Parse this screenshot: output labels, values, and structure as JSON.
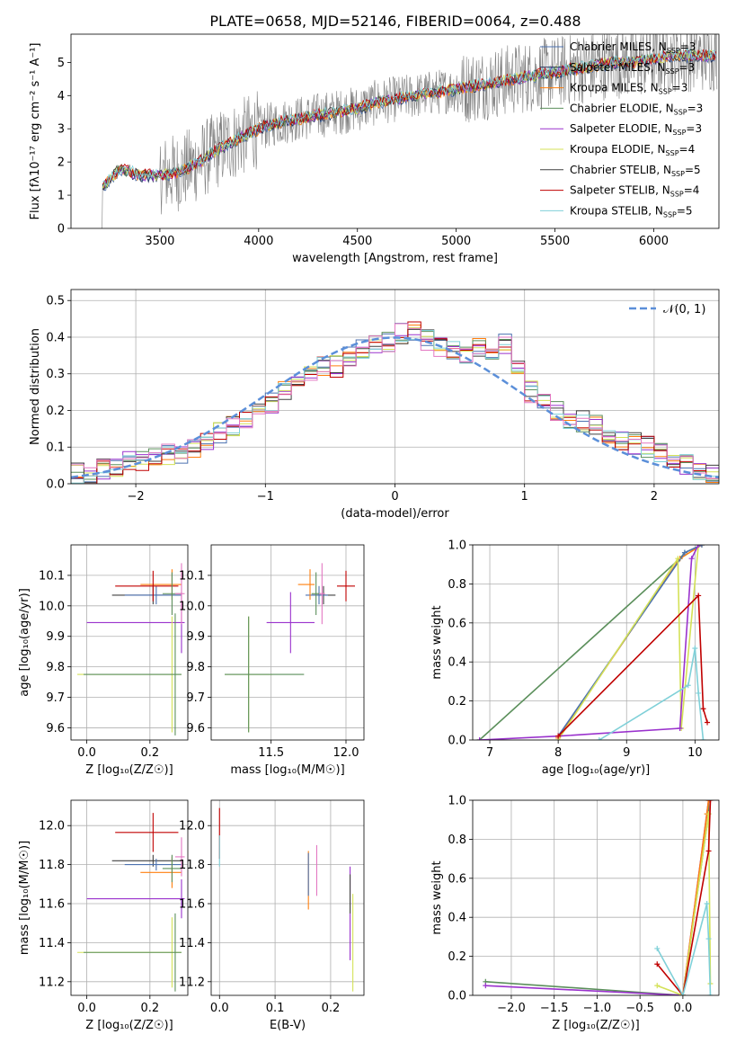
{
  "figure": {
    "title": "PLATE=0658, MJD=52146, FIBERID=0064, z=0.488"
  },
  "chart_data": [
    {
      "id": "spectrum",
      "type": "line",
      "xlabel": "wavelength [Angstrom, rest frame]",
      "ylabel": "Flux [fλ10⁻¹⁷ erg cm⁻² s⁻¹ A⁻¹]",
      "xlim": [
        3050,
        6330
      ],
      "ylim": [
        0,
        5.85
      ],
      "xticks": [
        3500,
        4000,
        4500,
        5000,
        5500,
        6000
      ],
      "yticks": [
        0,
        1,
        2,
        3,
        4,
        5
      ],
      "grid": false,
      "legend_position": "top-right",
      "data_series_color": "#808080",
      "model_series": [
        {
          "name": "Chabrier MILES, N_SSP=3",
          "color": "#4c72b0"
        },
        {
          "name": "Salpeter MILES, N_SSP=3",
          "color": "#1f2f5a"
        },
        {
          "name": "Kroupa MILES, N_SSP=3",
          "color": "#ff7f0e"
        },
        {
          "name": "Chabrier ELODIE, N_SSP=3",
          "color": "#5b8f5b"
        },
        {
          "name": "Salpeter ELODIE, N_SSP=3",
          "color": "#9a32cd"
        },
        {
          "name": "Kroupa ELODIE, N_SSP=4",
          "color": "#d4e157"
        },
        {
          "name": "Chabrier STELIB, N_SSP=5",
          "color": "#404040"
        },
        {
          "name": "Salpeter STELIB, N_SSP=4",
          "color": "#c00000"
        },
        {
          "name": "Kroupa STELIB, N_SSP=5",
          "color": "#7fd0d8"
        }
      ],
      "continuum_points": {
        "x": [
          3200,
          3250,
          3300,
          3400,
          3500,
          3600,
          3700,
          3800,
          3900,
          4000,
          4100,
          4200,
          4300,
          4400,
          4500,
          4600,
          4700,
          4800,
          4900,
          5000,
          5100,
          5200,
          5300,
          5400,
          5500,
          5600,
          5700,
          5800,
          5900,
          6000,
          6100,
          6200
        ],
        "y": [
          1.2,
          1.5,
          1.8,
          1.6,
          1.6,
          1.7,
          2.0,
          2.4,
          2.7,
          3.0,
          3.2,
          3.3,
          3.4,
          3.5,
          3.6,
          3.8,
          3.9,
          4.0,
          4.1,
          4.2,
          4.3,
          4.4,
          4.5,
          4.6,
          4.7,
          4.8,
          4.9,
          5.0,
          5.0,
          5.1,
          5.2,
          5.2
        ]
      }
    },
    {
      "id": "residuals",
      "type": "line",
      "xlabel": "(data-model)/error",
      "ylabel": "Normed distribution",
      "xlim": [
        -2.5,
        2.5
      ],
      "ylim": [
        0,
        0.53
      ],
      "xticks": [
        -2,
        -1,
        0,
        1,
        2
      ],
      "xtick_labels": [
        "−2",
        "−1",
        "0",
        "1",
        "2"
      ],
      "yticks": [
        0.0,
        0.1,
        0.2,
        0.3,
        0.4,
        0.5
      ],
      "ytick_labels": [
        "0.0",
        "0.1",
        "0.2",
        "0.3",
        "0.4",
        "0.5"
      ],
      "grid": true,
      "legend_position": "top-right",
      "normal_label": "𝒩(0, 1)",
      "normal_color": "#5b8fd9",
      "hist_colors": [
        "#4c72b0",
        "#ff7f0e",
        "#5b8f5b",
        "#9a32cd",
        "#d4e157",
        "#404040",
        "#c00000",
        "#7fd0d8",
        "#e377c2"
      ],
      "hist_bins": [
        -2.5,
        -2.4,
        -2.3,
        -2.2,
        -2.1,
        -2.0,
        -1.9,
        -1.8,
        -1.7,
        -1.6,
        -1.5,
        -1.4,
        -1.3,
        -1.2,
        -1.1,
        -1.0,
        -0.9,
        -0.8,
        -0.7,
        -0.6,
        -0.5,
        -0.4,
        -0.3,
        -0.2,
        -0.1,
        0.0,
        0.1,
        0.2,
        0.3,
        0.4,
        0.5,
        0.6,
        0.7,
        0.8,
        0.9,
        1.0,
        1.1,
        1.2,
        1.3,
        1.4,
        1.5,
        1.6,
        1.7,
        1.8,
        1.9,
        2.0,
        2.1,
        2.2,
        2.3,
        2.4,
        2.5
      ],
      "hist_base": [
        0.03,
        0.02,
        0.04,
        0.05,
        0.06,
        0.06,
        0.07,
        0.08,
        0.08,
        0.1,
        0.12,
        0.14,
        0.16,
        0.18,
        0.2,
        0.22,
        0.25,
        0.28,
        0.3,
        0.32,
        0.32,
        0.35,
        0.37,
        0.38,
        0.39,
        0.41,
        0.42,
        0.39,
        0.37,
        0.36,
        0.35,
        0.37,
        0.37,
        0.38,
        0.31,
        0.25,
        0.22,
        0.2,
        0.18,
        0.17,
        0.16,
        0.13,
        0.12,
        0.11,
        0.1,
        0.08,
        0.06,
        0.05,
        0.04,
        0.03
      ]
    },
    {
      "id": "age-vs-Z",
      "type": "scatter",
      "xlabel": "Z [log₁₀(Z/Z☉)]",
      "ylabel": "age  [log₁₀(age/yr)]",
      "xlim": [
        -0.05,
        0.32
      ],
      "ylim": [
        9.56,
        10.2
      ],
      "xticks": [
        0.0,
        0.2
      ],
      "xtick_labels": [
        "0.0",
        "0.2"
      ],
      "yticks": [
        9.6,
        9.7,
        9.8,
        9.9,
        10.0,
        10.1
      ],
      "ytick_labels": [
        "9.6",
        "9.7",
        "9.8",
        "9.9",
        "10.0",
        "10.1"
      ],
      "grid": true,
      "points": [
        {
          "x": 0.21,
          "y": 10.035,
          "xerr": [
            0.13,
            0.09
          ],
          "yerr": [
            0.03,
            0.03
          ],
          "color": "#404040"
        },
        {
          "x": 0.22,
          "y": 10.035,
          "xerr": [
            0.1,
            0.08
          ],
          "yerr": [
            0.03,
            0.03
          ],
          "color": "#4c72b0"
        },
        {
          "x": 0.27,
          "y": 10.07,
          "xerr": [
            0.1,
            0.03
          ],
          "yerr": [
            0.05,
            0.05
          ],
          "color": "#ff7f0e"
        },
        {
          "x": 0.21,
          "y": 10.065,
          "xerr": [
            0.12,
            0.08
          ],
          "yerr": [
            0.05,
            0.05
          ],
          "color": "#c00000"
        },
        {
          "x": 0.27,
          "y": 10.04,
          "xerr": [
            0.03,
            0.03
          ],
          "yerr": [
            0.07,
            0.07
          ],
          "color": "#5b8f5b"
        },
        {
          "x": 0.3,
          "y": 9.945,
          "xerr": [
            0.3,
            0.01
          ],
          "yerr": [
            0.1,
            0.1
          ],
          "color": "#9a32cd"
        },
        {
          "x": 0.27,
          "y": 9.775,
          "xerr": [
            0.3,
            0.03
          ],
          "yerr": [
            0.19,
            0.19
          ],
          "color": "#d4e157"
        },
        {
          "x": 0.28,
          "y": 9.775,
          "xerr": [
            0.29,
            0.02
          ],
          "yerr": [
            0.2,
            0.2
          ],
          "color": "#5b8f5b"
        },
        {
          "x": 0.3,
          "y": 10.04,
          "xerr": [
            0.02,
            0.01
          ],
          "yerr": [
            0.1,
            0.1
          ],
          "color": "#e377c2"
        }
      ]
    },
    {
      "id": "age-vs-mass",
      "type": "scatter",
      "xlabel": "mass [log₁₀(M/M☉)]",
      "ylabel": "",
      "xlim": [
        11.1,
        12.12
      ],
      "ylim": [
        9.56,
        10.2
      ],
      "xticks": [
        11.5,
        12.0
      ],
      "xtick_labels": [
        "11.5",
        "12.0"
      ],
      "yticks": [
        9.6,
        9.7,
        9.8,
        9.9,
        10.0,
        10.1
      ],
      "ytick_labels": [
        "9.6",
        "9.7",
        "9.8",
        "9.9",
        "10.0",
        "10.1"
      ],
      "grid": true,
      "points": [
        {
          "x": 11.85,
          "y": 10.035,
          "xerr": [
            0.08,
            0.08
          ],
          "yerr": [
            0.03,
            0.03
          ],
          "color": "#404040"
        },
        {
          "x": 11.82,
          "y": 10.035,
          "xerr": [
            0.09,
            0.06
          ],
          "yerr": [
            0.03,
            0.03
          ],
          "color": "#4c72b0"
        },
        {
          "x": 11.76,
          "y": 10.07,
          "xerr": [
            0.08,
            0.03
          ],
          "yerr": [
            0.05,
            0.05
          ],
          "color": "#ff7f0e"
        },
        {
          "x": 12.0,
          "y": 10.065,
          "xerr": [
            0.06,
            0.06
          ],
          "yerr": [
            0.05,
            0.05
          ],
          "color": "#c00000"
        },
        {
          "x": 11.8,
          "y": 10.04,
          "xerr": [
            0.03,
            0.03
          ],
          "yerr": [
            0.07,
            0.07
          ],
          "color": "#5b8f5b"
        },
        {
          "x": 11.63,
          "y": 9.945,
          "xerr": [
            0.16,
            0.16
          ],
          "yerr": [
            0.1,
            0.1
          ],
          "color": "#9a32cd"
        },
        {
          "x": 11.35,
          "y": 9.775,
          "xerr": [
            0.16,
            0.16
          ],
          "yerr": [
            0.19,
            0.19
          ],
          "color": "#d4e157"
        },
        {
          "x": 11.35,
          "y": 9.775,
          "xerr": [
            0.16,
            0.37
          ],
          "yerr": [
            0.19,
            0.19
          ],
          "color": "#5b8f5b"
        },
        {
          "x": 11.84,
          "y": 10.04,
          "xerr": [
            0.02,
            0.02
          ],
          "yerr": [
            0.1,
            0.1
          ],
          "color": "#e377c2"
        }
      ]
    },
    {
      "id": "massweight-vs-age",
      "type": "line",
      "xlabel": "age  [log₁₀(age/yr)]",
      "ylabel": "mass weight",
      "xlim": [
        6.75,
        10.35
      ],
      "ylim": [
        0,
        1.0
      ],
      "xticks": [
        7,
        8,
        9,
        10
      ],
      "yticks": [
        0.0,
        0.2,
        0.4,
        0.6,
        0.8,
        1.0
      ],
      "ytick_labels": [
        "0.0",
        "0.2",
        "0.4",
        "0.6",
        "0.8",
        "1.0"
      ],
      "grid": true,
      "series": [
        {
          "color": "#5b8f5b",
          "x": [
            6.85,
            9.78,
            9.85,
            10.1
          ],
          "y": [
            0.0,
            0.93,
            0.96,
            1.0
          ]
        },
        {
          "color": "#ff7f0e",
          "x": [
            8.0,
            9.78,
            10.1
          ],
          "y": [
            0.01,
            0.93,
            1.0
          ]
        },
        {
          "color": "#4c72b0",
          "x": [
            8.0,
            9.85,
            10.1
          ],
          "y": [
            0.02,
            0.96,
            1.0
          ]
        },
        {
          "color": "#d4e157",
          "x": [
            8.0,
            9.75,
            9.8,
            10.05
          ],
          "y": [
            0.0,
            0.93,
            0.06,
            1.0
          ]
        },
        {
          "color": "#9a32cd",
          "x": [
            6.85,
            8.0,
            9.78,
            9.95,
            10.05
          ],
          "y": [
            0.0,
            0.02,
            0.06,
            0.93,
            1.0
          ]
        },
        {
          "color": "#c00000",
          "x": [
            8.0,
            10.05,
            10.12,
            10.18
          ],
          "y": [
            0.02,
            0.74,
            0.16,
            0.09
          ]
        },
        {
          "color": "#7fd0d8",
          "x": [
            8.6,
            9.9,
            10.0,
            10.05,
            10.12
          ],
          "y": [
            0.0,
            0.28,
            0.47,
            0.24,
            0.0
          ]
        }
      ]
    },
    {
      "id": "mass-vs-Z",
      "type": "scatter",
      "xlabel": "Z [log₁₀(Z/Z☉)]",
      "ylabel": "mass [log₁₀(M/M☉)]",
      "xlim": [
        -0.05,
        0.32
      ],
      "ylim": [
        11.13,
        12.13
      ],
      "xticks": [
        0.0,
        0.2
      ],
      "xtick_labels": [
        "0.0",
        "0.2"
      ],
      "yticks": [
        11.2,
        11.4,
        11.6,
        11.8,
        12.0
      ],
      "ytick_labels": [
        "11.2",
        "11.4",
        "11.6",
        "11.8",
        "12.0"
      ],
      "grid": true,
      "points": [
        {
          "x": 0.21,
          "y": 11.82,
          "xerr": [
            0.13,
            0.09
          ],
          "yerr": [
            0.03,
            0.03
          ],
          "color": "#404040"
        },
        {
          "x": 0.22,
          "y": 11.8,
          "xerr": [
            0.1,
            0.08
          ],
          "yerr": [
            0.03,
            0.03
          ],
          "color": "#4c72b0"
        },
        {
          "x": 0.27,
          "y": 11.76,
          "xerr": [
            0.1,
            0.03
          ],
          "yerr": [
            0.08,
            0.08
          ],
          "color": "#ff7f0e"
        },
        {
          "x": 0.21,
          "y": 11.965,
          "xerr": [
            0.12,
            0.08
          ],
          "yerr": [
            0.1,
            0.1
          ],
          "color": "#c00000"
        },
        {
          "x": 0.27,
          "y": 11.78,
          "xerr": [
            0.03,
            0.03
          ],
          "yerr": [
            0.07,
            0.07
          ],
          "color": "#5b8f5b"
        },
        {
          "x": 0.3,
          "y": 11.625,
          "xerr": [
            0.3,
            0.01
          ],
          "yerr": [
            0.1,
            0.1
          ],
          "color": "#9a32cd"
        },
        {
          "x": 0.27,
          "y": 11.35,
          "xerr": [
            0.3,
            0.03
          ],
          "yerr": [
            0.18,
            0.18
          ],
          "color": "#d4e157"
        },
        {
          "x": 0.28,
          "y": 11.35,
          "xerr": [
            0.29,
            0.02
          ],
          "yerr": [
            0.2,
            0.2
          ],
          "color": "#5b8f5b"
        },
        {
          "x": 0.3,
          "y": 11.84,
          "xerr": [
            0.02,
            0.01
          ],
          "yerr": [
            0.1,
            0.1
          ],
          "color": "#e377c2"
        }
      ]
    },
    {
      "id": "mass-vs-EBV",
      "type": "scatter",
      "xlabel": "E(B-V)",
      "ylabel": "",
      "xlim": [
        -0.015,
        0.26
      ],
      "ylim": [
        11.13,
        12.13
      ],
      "xticks": [
        0.0,
        0.1,
        0.2
      ],
      "xtick_labels": [
        "0.0",
        "0.1",
        "0.2"
      ],
      "yticks": [
        11.2,
        11.4,
        11.6,
        11.8,
        12.0
      ],
      "ytick_labels": [
        "11.2",
        "11.4",
        "11.6",
        "11.8",
        "12.0"
      ],
      "grid": true,
      "points": [
        {
          "x": 0.0,
          "y": 11.96,
          "xerr": [
            0,
            0
          ],
          "yerr": [
            0.13,
            0.13
          ],
          "color": "#c00000"
        },
        {
          "x": 0.0,
          "y": 11.87,
          "xerr": [
            0,
            0
          ],
          "yerr": [
            0.08,
            0.08
          ],
          "color": "#7fd0d8"
        },
        {
          "x": 0.16,
          "y": 11.72,
          "xerr": [
            0,
            0
          ],
          "yerr": [
            0.15,
            0.15
          ],
          "color": "#ff7f0e"
        },
        {
          "x": 0.16,
          "y": 11.75,
          "xerr": [
            0,
            0
          ],
          "yerr": [
            0.11,
            0.11
          ],
          "color": "#4c72b0"
        },
        {
          "x": 0.175,
          "y": 11.77,
          "xerr": [
            0,
            0
          ],
          "yerr": [
            0.13,
            0.13
          ],
          "color": "#e377c2"
        },
        {
          "x": 0.235,
          "y": 11.55,
          "xerr": [
            0,
            0
          ],
          "yerr": [
            0.24,
            0.24
          ],
          "color": "#9a32cd"
        },
        {
          "x": 0.24,
          "y": 11.4,
          "xerr": [
            0,
            0
          ],
          "yerr": [
            0.25,
            0.25
          ],
          "color": "#d4e157"
        },
        {
          "x": 0.235,
          "y": 11.65,
          "xerr": [
            0,
            0
          ],
          "yerr": [
            0.1,
            0.1
          ],
          "color": "#404040"
        }
      ]
    },
    {
      "id": "massweight-vs-Z",
      "type": "line",
      "xlabel": "Z [log₁₀(Z/Z☉)]",
      "ylabel": "mass weight",
      "xlim": [
        -2.45,
        0.42
      ],
      "ylim": [
        0,
        1.0
      ],
      "xticks": [
        -2.0,
        -1.5,
        -1.0,
        -0.5,
        0.0
      ],
      "xtick_labels": [
        "−2.0",
        "−1.5",
        "−1.0",
        "−0.5",
        "0.0"
      ],
      "yticks": [
        0.0,
        0.2,
        0.4,
        0.6,
        0.8,
        1.0
      ],
      "ytick_labels": [
        "0.0",
        "0.2",
        "0.4",
        "0.6",
        "0.8",
        "1.0"
      ],
      "grid": true,
      "series": [
        {
          "color": "#5b8f5b",
          "x": [
            -2.3,
            0.0,
            0.3,
            0.3
          ],
          "y": [
            0.07,
            0.0,
            0.93,
            1.0
          ]
        },
        {
          "color": "#9a32cd",
          "x": [
            -2.3,
            0.0,
            0.3
          ],
          "y": [
            0.05,
            0.0,
            1.0
          ]
        },
        {
          "color": "#ff7f0e",
          "x": [
            0.0,
            0.28,
            0.3
          ],
          "y": [
            0.0,
            0.93,
            1.0
          ]
        },
        {
          "color": "#d4e157",
          "x": [
            -0.3,
            0.0,
            0.3,
            0.32
          ],
          "y": [
            0.05,
            0.0,
            0.93,
            0.06
          ]
        },
        {
          "color": "#c00000",
          "x": [
            -0.3,
            0.0,
            0.3,
            0.32
          ],
          "y": [
            0.16,
            0.0,
            0.74,
            1.0
          ]
        },
        {
          "color": "#7fd0d8",
          "x": [
            -0.3,
            0.0,
            0.28,
            0.3,
            0.32
          ],
          "y": [
            0.24,
            0.0,
            0.47,
            0.29,
            0.0
          ]
        }
      ]
    }
  ]
}
